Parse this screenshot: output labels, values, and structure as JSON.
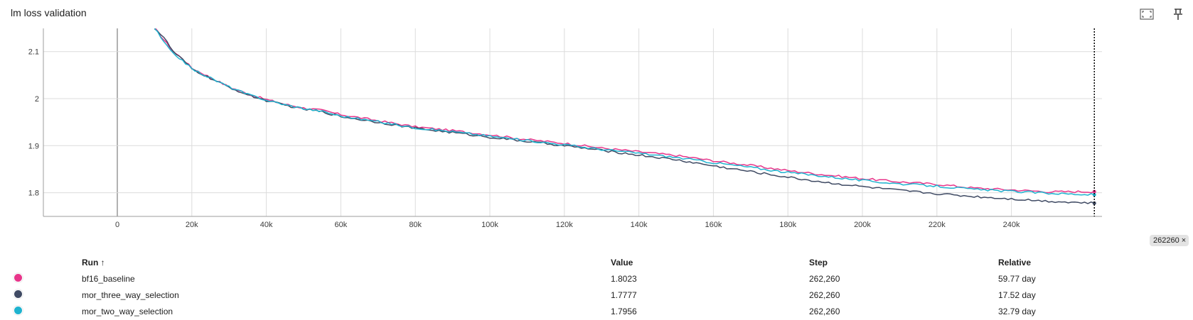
{
  "card": {
    "title": "lm loss validation",
    "icons": {
      "fullscreen": "fullscreen-icon",
      "pin": "pin-icon"
    }
  },
  "cursor": {
    "step_label": "262260",
    "close_label": "×"
  },
  "table": {
    "headers": {
      "run": "Run ↑",
      "value": "Value",
      "step": "Step",
      "relative": "Relative"
    },
    "rows": [
      {
        "color": "#e8358a",
        "run": "bf16_baseline",
        "value": "1.8023",
        "step": "262,260",
        "relative": "59.77 day"
      },
      {
        "color": "#3f4a63",
        "run": "mor_three_way_selection",
        "value": "1.7777",
        "step": "262,260",
        "relative": "17.52 day"
      },
      {
        "color": "#1fb3cf",
        "run": "mor_two_way_selection",
        "value": "1.7956",
        "step": "262,260",
        "relative": "32.79 day"
      }
    ]
  },
  "chart_data": {
    "type": "line",
    "title": "lm loss validation",
    "xlabel": "",
    "ylabel": "",
    "xlim": [
      -20000,
      264000
    ],
    "ylim": [
      1.75,
      2.15
    ],
    "grid": true,
    "x_ticks": [
      0,
      20000,
      40000,
      60000,
      80000,
      100000,
      120000,
      140000,
      160000,
      180000,
      200000,
      220000,
      240000
    ],
    "x_tick_labels": [
      "0",
      "20k",
      "40k",
      "60k",
      "80k",
      "100k",
      "120k",
      "140k",
      "160k",
      "180k",
      "200k",
      "220k",
      "240k"
    ],
    "y_ticks": [
      1.8,
      1.9,
      2.0,
      2.1
    ],
    "y_tick_labels": [
      "1.8",
      "1.9",
      "2",
      "2.1"
    ],
    "cursor_x": 262260,
    "x": [
      10000,
      12500,
      15000,
      17500,
      20000,
      25000,
      30000,
      35000,
      40000,
      45000,
      50000,
      55000,
      60000,
      70000,
      80000,
      90000,
      100000,
      110000,
      120000,
      130000,
      140000,
      150000,
      160000,
      170000,
      180000,
      190000,
      200000,
      210000,
      220000,
      230000,
      240000,
      250000,
      262260
    ],
    "series": [
      {
        "name": "bf16_baseline",
        "color": "#e8358a",
        "values": [
          2.15,
          2.125,
          2.1,
          2.085,
          2.065,
          2.045,
          2.025,
          2.01,
          1.998,
          1.988,
          1.98,
          1.975,
          1.966,
          1.953,
          1.94,
          1.932,
          1.923,
          1.913,
          1.905,
          1.895,
          1.887,
          1.879,
          1.868,
          1.858,
          1.847,
          1.838,
          1.83,
          1.823,
          1.818,
          1.81,
          1.806,
          1.802,
          1.8023
        ]
      },
      {
        "name": "mor_three_way_selection",
        "color": "#3f4a63",
        "values": [
          2.15,
          2.13,
          2.1,
          2.083,
          2.063,
          2.043,
          2.024,
          2.008,
          1.996,
          1.986,
          1.978,
          1.972,
          1.962,
          1.95,
          1.937,
          1.928,
          1.918,
          1.909,
          1.9,
          1.89,
          1.88,
          1.87,
          1.857,
          1.845,
          1.833,
          1.822,
          1.813,
          1.805,
          1.798,
          1.792,
          1.787,
          1.782,
          1.7777
        ]
      },
      {
        "name": "mor_two_way_selection",
        "color": "#1fb3cf",
        "values": [
          2.15,
          2.12,
          2.095,
          2.082,
          2.063,
          2.044,
          2.025,
          2.009,
          1.997,
          1.987,
          1.979,
          1.973,
          1.963,
          1.951,
          1.938,
          1.93,
          1.92,
          1.911,
          1.902,
          1.892,
          1.884,
          1.875,
          1.864,
          1.854,
          1.843,
          1.835,
          1.826,
          1.819,
          1.814,
          1.807,
          1.803,
          1.799,
          1.7956
        ]
      }
    ]
  }
}
